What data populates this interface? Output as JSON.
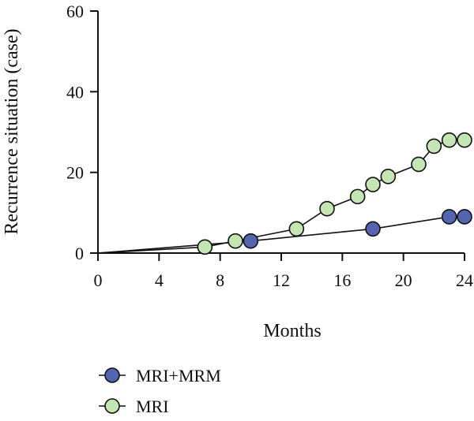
{
  "chart_data": {
    "type": "line",
    "xlabel": "Months",
    "ylabel": "Recurrence situation (case)",
    "xlim": [
      0,
      24
    ],
    "ylim": [
      0,
      60
    ],
    "xticks": [
      0,
      4,
      8,
      12,
      16,
      20,
      24
    ],
    "yticks": [
      0,
      20,
      40,
      60
    ],
    "grid": false,
    "legend_position": "bottom-left",
    "series": [
      {
        "name": "MRI+MRM",
        "color": "#5564b1",
        "x": [
          0,
          10,
          18,
          23,
          24
        ],
        "y": [
          0,
          3,
          6,
          9,
          9
        ],
        "markers": [
          false,
          true,
          true,
          true,
          true
        ]
      },
      {
        "name": "MRI",
        "color": "#c3e6b3",
        "x": [
          0,
          7,
          9,
          13,
          15,
          17,
          18,
          19,
          21,
          22,
          23,
          24
        ],
        "y": [
          0,
          1.5,
          3,
          6,
          11,
          14,
          17,
          19,
          22,
          26.5,
          28,
          28
        ],
        "markers": [
          false,
          true,
          true,
          true,
          true,
          true,
          true,
          true,
          true,
          true,
          true,
          true
        ]
      }
    ]
  }
}
